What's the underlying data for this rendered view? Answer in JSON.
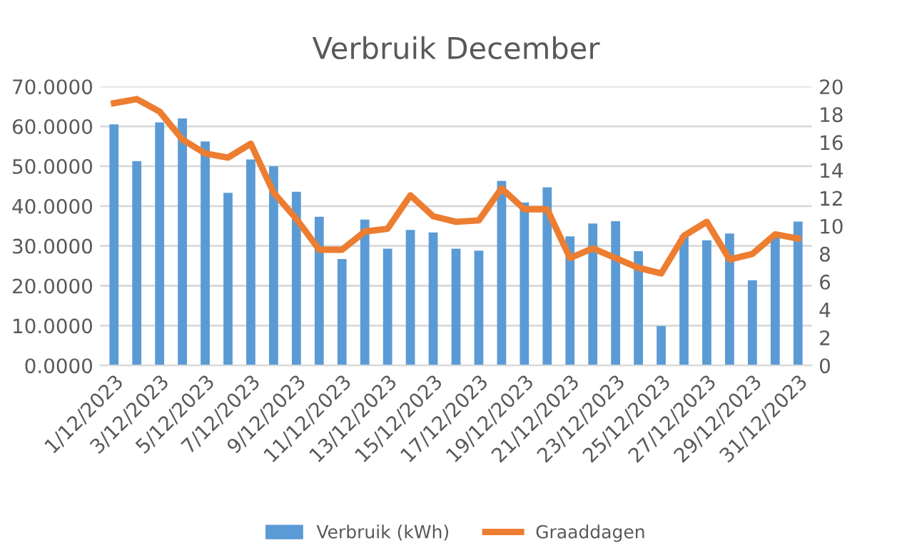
{
  "chart_data": {
    "type": "bar",
    "title": "Verbruik December",
    "categories": [
      "1/12/2023",
      null,
      "3/12/2023",
      null,
      "5/12/2023",
      null,
      "7/12/2023",
      null,
      "9/12/2023",
      null,
      "11/12/2023",
      null,
      "13/12/2023",
      null,
      "15/12/2023",
      null,
      "17/12/2023",
      null,
      "19/12/2023",
      null,
      "21/12/2023",
      null,
      "23/12/2023",
      null,
      "25/12/2023",
      null,
      "27/12/2023",
      null,
      "29/12/2023",
      null,
      "31/12/2023"
    ],
    "series": [
      {
        "name": "Verbruik (kWh)",
        "color": "#5b9bd5",
        "values": [
          60.5,
          51.3,
          61,
          62,
          56.2,
          43.3,
          51.7,
          50,
          43.6,
          37.3,
          26.7,
          36.6,
          29.3,
          34,
          33.4,
          29.3,
          28.8,
          46.3,
          40.9,
          44.7,
          32.4,
          35.6,
          36.2,
          28.7,
          9.9,
          32.6,
          31.4,
          33.1,
          21.4,
          32.4,
          36.1
        ]
      },
      {
        "name": "Graaddagen",
        "type": "line",
        "axis": "y2",
        "color": "#ed7d31",
        "values": [
          18.8,
          19.1,
          18.2,
          16.2,
          15.2,
          14.9,
          15.9,
          12.4,
          10.5,
          8.3,
          8.3,
          9.6,
          9.8,
          12.2,
          10.7,
          10.3,
          10.4,
          12.7,
          11.2,
          11.2,
          7.7,
          8.4,
          7.7,
          7.0,
          6.6,
          9.3,
          10.3,
          7.6,
          8.0,
          9.4,
          9.1
        ]
      }
    ],
    "ylim": [
      0,
      70
    ],
    "yticks": [
      {
        "value": 0,
        "label": "0.0000"
      },
      {
        "value": 10,
        "label": "10.0000"
      },
      {
        "value": 20,
        "label": "20.0000"
      },
      {
        "value": 30,
        "label": "30.0000"
      },
      {
        "value": 40,
        "label": "40.0000"
      },
      {
        "value": 50,
        "label": "50.0000"
      },
      {
        "value": 60,
        "label": "60.0000"
      },
      {
        "value": 70,
        "label": "70.0000"
      }
    ],
    "y2lim": [
      0,
      20
    ],
    "y2ticks": [
      0,
      2,
      4,
      6,
      8,
      10,
      12,
      14,
      16,
      18,
      20
    ],
    "grid": "y",
    "legend": "bottom"
  }
}
